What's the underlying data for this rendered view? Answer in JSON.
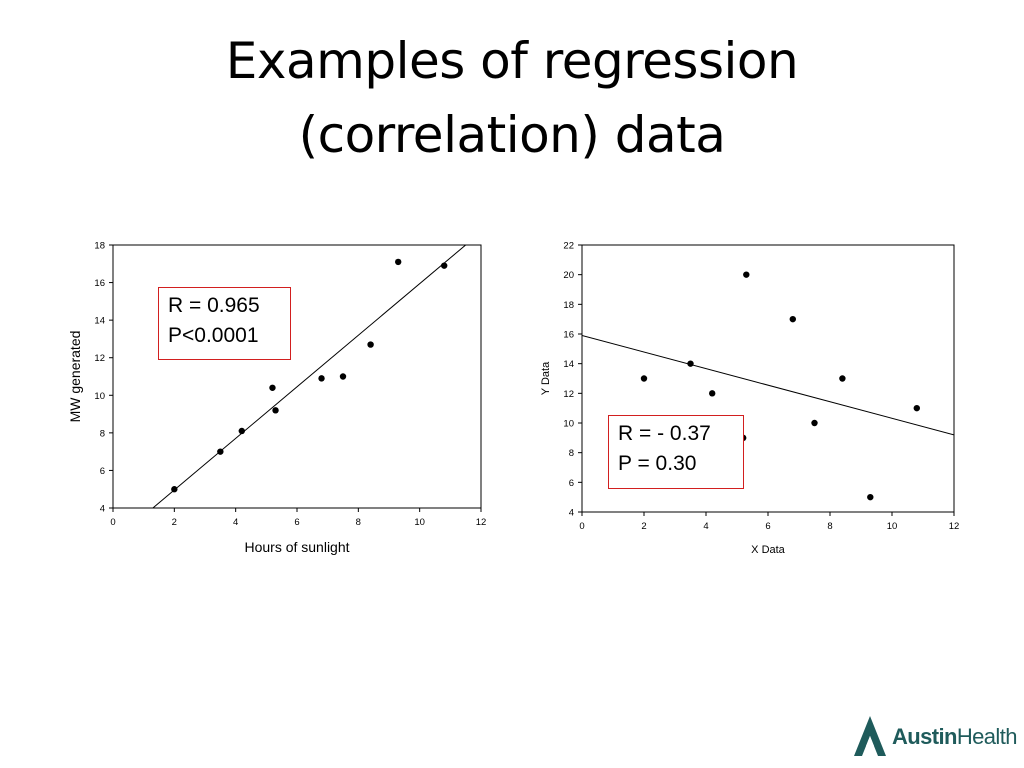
{
  "slide": {
    "title_line1": "Examples of regression",
    "title_line2": "(correlation) data"
  },
  "chart_data": [
    {
      "type": "scatter",
      "title": "",
      "xlabel": "Hours of sunlight",
      "ylabel": "MW generated",
      "xlim": [
        0,
        12
      ],
      "ylim": [
        4,
        18
      ],
      "x_ticks": [
        0,
        2,
        4,
        6,
        8,
        10,
        12
      ],
      "y_ticks": [
        4,
        6,
        8,
        10,
        12,
        14,
        16,
        18
      ],
      "series": [
        {
          "x": [
            2.0,
            3.5,
            4.2,
            5.2,
            5.3,
            6.8,
            7.5,
            8.4,
            9.3,
            10.8
          ],
          "y": [
            5.0,
            7.0,
            8.1,
            10.4,
            9.2,
            10.9,
            11.0,
            12.7,
            17.1,
            16.9
          ]
        }
      ],
      "regression_line": {
        "x": [
          1.3,
          11.5
        ],
        "y": [
          4.0,
          18.0
        ]
      },
      "annotation": {
        "line1": "R = 0.965",
        "line2": "P<0.0001",
        "border_color": "#d21f1f"
      }
    },
    {
      "type": "scatter",
      "title": "",
      "xlabel": "X Data",
      "ylabel": "Y Data",
      "xlim": [
        0,
        12
      ],
      "ylim": [
        4,
        22
      ],
      "x_ticks": [
        0,
        2,
        4,
        6,
        8,
        10,
        12
      ],
      "y_ticks": [
        4,
        6,
        8,
        10,
        12,
        14,
        16,
        18,
        20,
        22
      ],
      "series": [
        {
          "x": [
            2.0,
            3.5,
            4.2,
            5.2,
            5.3,
            6.8,
            7.5,
            8.4,
            9.3,
            10.8
          ],
          "y": [
            13.0,
            14.0,
            12.0,
            9.0,
            20.0,
            17.0,
            10.0,
            13.0,
            5.0,
            11.0
          ]
        }
      ],
      "regression_line": {
        "x": [
          0,
          12
        ],
        "y": [
          15.9,
          9.2
        ]
      },
      "annotation": {
        "line1": "R = - 0.37",
        "line2": "P = 0.30",
        "border_color": "#d21f1f"
      }
    }
  ],
  "logo": {
    "brand_bold": "Austin",
    "brand_regular": "Health",
    "color": "#1f5b5b"
  }
}
